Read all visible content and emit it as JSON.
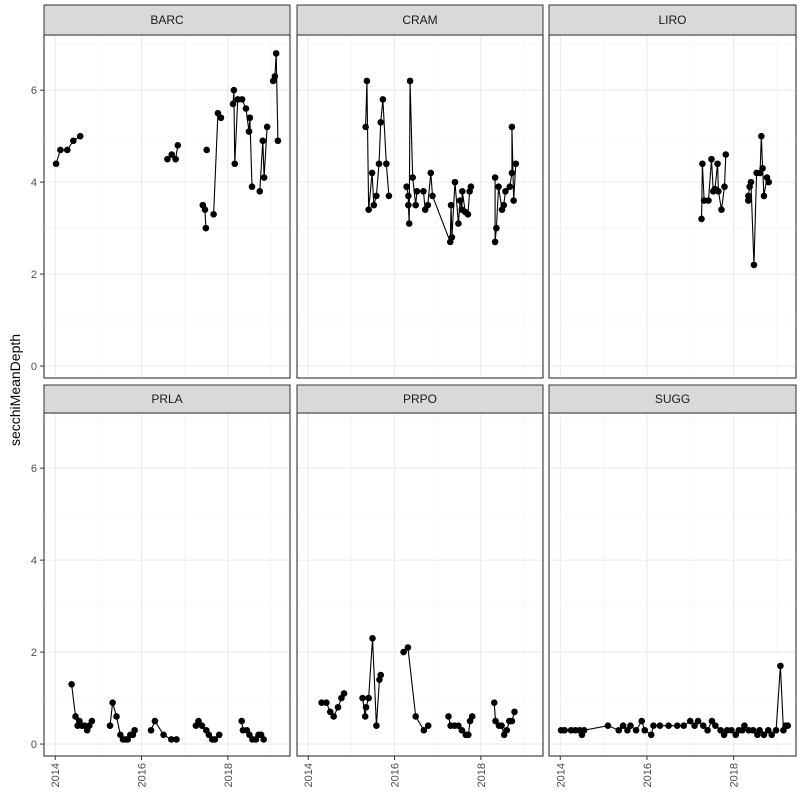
{
  "chart_data": {
    "type": "line",
    "title": "",
    "xlabel": "",
    "ylabel": "secchiMeanDepth",
    "xlim": [
      2013.74,
      2019.44
    ],
    "ylim": [
      -0.26,
      7.2
    ],
    "x_ticks": [
      2014,
      2016,
      2018
    ],
    "y_ticks": [
      0,
      2,
      4,
      6
    ],
    "grid": true,
    "point_color": "#000000",
    "facets": [
      {
        "name": "BARC",
        "segments": [
          [
            [
              2014.02,
              4.4
            ],
            [
              2014.12,
              4.7
            ],
            [
              2014.28,
              4.7
            ],
            [
              2014.42,
              4.9
            ],
            [
              2014.58,
              5.0
            ]
          ],
          [
            [
              2016.6,
              4.5
            ],
            [
              2016.7,
              4.6
            ],
            [
              2016.79,
              4.5
            ],
            [
              2016.84,
              4.8
            ]
          ],
          [
            [
              2017.42,
              3.5
            ],
            [
              2017.47,
              3.4
            ],
            [
              2017.49,
              3.0
            ]
          ],
          [
            [
              2017.51,
              4.7
            ]
          ],
          [
            [
              2017.67,
              3.3
            ],
            [
              2017.77,
              5.5
            ],
            [
              2017.84,
              5.4
            ]
          ],
          [
            [
              2018.12,
              5.7
            ],
            [
              2018.14,
              6.0
            ],
            [
              2018.16,
              4.4
            ],
            [
              2018.23,
              5.8
            ],
            [
              2018.33,
              5.8
            ],
            [
              2018.42,
              5.6
            ],
            [
              2018.49,
              5.1
            ],
            [
              2018.51,
              5.4
            ],
            [
              2018.56,
              3.9
            ]
          ],
          [
            [
              2018.74,
              3.8
            ],
            [
              2018.81,
              4.9
            ],
            [
              2018.84,
              4.1
            ],
            [
              2018.91,
              5.2
            ]
          ],
          [
            [
              2019.05,
              6.2
            ],
            [
              2019.09,
              6.3
            ],
            [
              2019.12,
              6.8
            ],
            [
              2019.16,
              4.9
            ]
          ]
        ]
      },
      {
        "name": "CRAM",
        "segments": [
          [
            [
              2015.33,
              5.2
            ],
            [
              2015.36,
              6.2
            ],
            [
              2015.4,
              3.4
            ],
            [
              2015.48,
              4.2
            ],
            [
              2015.52,
              3.5
            ],
            [
              2015.58,
              3.7
            ],
            [
              2015.64,
              4.4
            ],
            [
              2015.68,
              5.3
            ],
            [
              2015.73,
              5.8
            ],
            [
              2015.81,
              4.4
            ],
            [
              2015.87,
              3.7
            ]
          ],
          [
            [
              2016.28,
              3.9
            ],
            [
              2016.32,
              3.7
            ],
            [
              2016.32,
              3.5
            ],
            [
              2016.34,
              3.1
            ],
            [
              2016.36,
              6.2
            ],
            [
              2016.42,
              4.1
            ],
            [
              2016.49,
              3.5
            ],
            [
              2016.52,
              3.8
            ],
            [
              2016.67,
              3.8
            ],
            [
              2016.71,
              3.4
            ],
            [
              2016.77,
              3.5
            ],
            [
              2016.84,
              4.2
            ],
            [
              2016.88,
              3.7
            ],
            [
              2017.29,
              2.7
            ],
            [
              2017.31,
              3.5
            ],
            [
              2017.33,
              2.8
            ],
            [
              2017.4,
              4.0
            ],
            [
              2017.48,
              3.1
            ],
            [
              2017.52,
              3.6
            ],
            [
              2017.56,
              3.4
            ],
            [
              2017.57,
              3.8
            ],
            [
              2017.64,
              3.35
            ],
            [
              2017.7,
              3.3
            ],
            [
              2017.74,
              3.8
            ],
            [
              2017.77,
              3.9
            ]
          ],
          [
            [
              2018.33,
              4.1
            ],
            [
              2018.33,
              2.7
            ],
            [
              2018.36,
              3.0
            ],
            [
              2018.41,
              3.9
            ],
            [
              2018.49,
              3.4
            ],
            [
              2018.53,
              3.5
            ],
            [
              2018.57,
              3.8
            ],
            [
              2018.67,
              3.9
            ],
            [
              2018.72,
              4.2
            ],
            [
              2018.72,
              5.2
            ],
            [
              2018.76,
              3.6
            ],
            [
              2018.81,
              4.4
            ]
          ]
        ]
      },
      {
        "name": "LIRO",
        "segments": [
          [
            [
              2017.26,
              3.2
            ],
            [
              2017.28,
              4.4
            ],
            [
              2017.32,
              3.6
            ],
            [
              2017.42,
              3.6
            ],
            [
              2017.49,
              4.5
            ],
            [
              2017.53,
              3.8
            ],
            [
              2017.57,
              3.85
            ],
            [
              2017.63,
              4.4
            ],
            [
              2017.65,
              3.8
            ],
            [
              2017.72,
              3.4
            ],
            [
              2017.79,
              3.9
            ],
            [
              2017.82,
              4.6
            ]
          ],
          [
            [
              2018.34,
              3.6
            ],
            [
              2018.34,
              3.7
            ],
            [
              2018.37,
              3.9
            ],
            [
              2018.4,
              4.0
            ],
            [
              2018.47,
              2.2
            ],
            [
              2018.53,
              4.2
            ],
            [
              2018.61,
              4.2
            ],
            [
              2018.64,
              5.0
            ],
            [
              2018.67,
              4.3
            ],
            [
              2018.7,
              3.7
            ],
            [
              2018.77,
              4.1
            ],
            [
              2018.81,
              4.0
            ]
          ]
        ]
      },
      {
        "name": "PRLA",
        "segments": [
          [
            [
              2014.38,
              1.3
            ],
            [
              2014.47,
              0.6
            ],
            [
              2014.52,
              0.4
            ],
            [
              2014.56,
              0.5
            ],
            [
              2014.62,
              0.4
            ],
            [
              2014.68,
              0.4
            ],
            [
              2014.74,
              0.3
            ],
            [
              2014.79,
              0.4
            ],
            [
              2014.85,
              0.5
            ]
          ],
          [
            [
              2015.27,
              0.4
            ],
            [
              2015.33,
              0.9
            ],
            [
              2015.42,
              0.6
            ],
            [
              2015.51,
              0.2
            ],
            [
              2015.57,
              0.1
            ],
            [
              2015.63,
              0.1
            ],
            [
              2015.68,
              0.1
            ],
            [
              2015.74,
              0.2
            ],
            [
              2015.8,
              0.2
            ],
            [
              2015.84,
              0.3
            ]
          ],
          [
            [
              2016.22,
              0.3
            ],
            [
              2016.31,
              0.5
            ],
            [
              2016.51,
              0.2
            ],
            [
              2016.69,
              0.1
            ],
            [
              2016.81,
              0.1
            ]
          ],
          [
            [
              2017.26,
              0.4
            ],
            [
              2017.32,
              0.5
            ],
            [
              2017.4,
              0.4
            ],
            [
              2017.5,
              0.3
            ],
            [
              2017.56,
              0.2
            ],
            [
              2017.64,
              0.1
            ],
            [
              2017.7,
              0.1
            ],
            [
              2017.8,
              0.2
            ]
          ],
          [
            [
              2018.32,
              0.5
            ],
            [
              2018.35,
              0.3
            ],
            [
              2018.44,
              0.3
            ],
            [
              2018.5,
              0.2
            ],
            [
              2018.57,
              0.1
            ],
            [
              2018.65,
              0.1
            ],
            [
              2018.71,
              0.2
            ],
            [
              2018.77,
              0.2
            ],
            [
              2018.83,
              0.1
            ]
          ]
        ]
      },
      {
        "name": "PRPO",
        "segments": [
          [
            [
              2014.31,
              0.9
            ],
            [
              2014.42,
              0.9
            ],
            [
              2014.51,
              0.7
            ],
            [
              2014.59,
              0.6
            ],
            [
              2014.69,
              0.8
            ],
            [
              2014.77,
              1.0
            ],
            [
              2014.83,
              1.1
            ]
          ],
          [
            [
              2015.26,
              1.0
            ],
            [
              2015.32,
              0.6
            ],
            [
              2015.34,
              0.8
            ],
            [
              2015.4,
              1.0
            ],
            [
              2015.49,
              2.3
            ],
            [
              2015.58,
              0.4
            ],
            [
              2015.65,
              1.4
            ],
            [
              2015.68,
              1.5
            ]
          ],
          [
            [
              2016.21,
              2.0
            ],
            [
              2016.31,
              2.1
            ],
            [
              2016.49,
              0.6
            ],
            [
              2016.68,
              0.3
            ],
            [
              2016.78,
              0.4
            ]
          ],
          [
            [
              2017.25,
              0.6
            ],
            [
              2017.3,
              0.4
            ],
            [
              2017.39,
              0.4
            ],
            [
              2017.48,
              0.4
            ],
            [
              2017.56,
              0.3
            ],
            [
              2017.65,
              0.2
            ],
            [
              2017.71,
              0.2
            ],
            [
              2017.75,
              0.5
            ],
            [
              2017.8,
              0.6
            ]
          ],
          [
            [
              2018.31,
              0.9
            ],
            [
              2018.34,
              0.5
            ],
            [
              2018.42,
              0.4
            ],
            [
              2018.48,
              0.4
            ],
            [
              2018.54,
              0.2
            ],
            [
              2018.6,
              0.3
            ],
            [
              2018.66,
              0.5
            ],
            [
              2018.72,
              0.5
            ],
            [
              2018.78,
              0.7
            ]
          ]
        ]
      },
      {
        "name": "SUGG",
        "segments": [
          [
            [
              2014.02,
              0.3
            ],
            [
              2014.1,
              0.3
            ],
            [
              2014.25,
              0.3
            ],
            [
              2014.35,
              0.3
            ],
            [
              2014.45,
              0.3
            ],
            [
              2014.5,
              0.2
            ],
            [
              2014.55,
              0.3
            ],
            [
              2015.1,
              0.4
            ],
            [
              2015.35,
              0.3
            ],
            [
              2015.45,
              0.4
            ],
            [
              2015.55,
              0.3
            ],
            [
              2015.62,
              0.4
            ],
            [
              2015.75,
              0.3
            ],
            [
              2015.88,
              0.5
            ],
            [
              2015.95,
              0.3
            ],
            [
              2016.1,
              0.2
            ],
            [
              2016.15,
              0.4
            ],
            [
              2016.3,
              0.4
            ],
            [
              2016.5,
              0.4
            ],
            [
              2016.7,
              0.4
            ],
            [
              2016.85,
              0.4
            ],
            [
              2017.0,
              0.5
            ],
            [
              2017.1,
              0.4
            ],
            [
              2017.18,
              0.5
            ],
            [
              2017.3,
              0.4
            ],
            [
              2017.4,
              0.3
            ],
            [
              2017.5,
              0.5
            ],
            [
              2017.58,
              0.4
            ],
            [
              2017.7,
              0.3
            ],
            [
              2017.78,
              0.2
            ],
            [
              2017.85,
              0.3
            ],
            [
              2017.95,
              0.3
            ],
            [
              2018.05,
              0.2
            ],
            [
              2018.12,
              0.3
            ],
            [
              2018.2,
              0.3
            ],
            [
              2018.25,
              0.4
            ],
            [
              2018.35,
              0.3
            ],
            [
              2018.45,
              0.3
            ],
            [
              2018.55,
              0.2
            ],
            [
              2018.6,
              0.3
            ],
            [
              2018.7,
              0.2
            ],
            [
              2018.8,
              0.3
            ],
            [
              2018.88,
              0.2
            ],
            [
              2018.98,
              0.3
            ],
            [
              2019.08,
              1.7
            ],
            [
              2019.15,
              0.3
            ],
            [
              2019.2,
              0.4
            ],
            [
              2019.25,
              0.4
            ]
          ]
        ]
      }
    ]
  }
}
